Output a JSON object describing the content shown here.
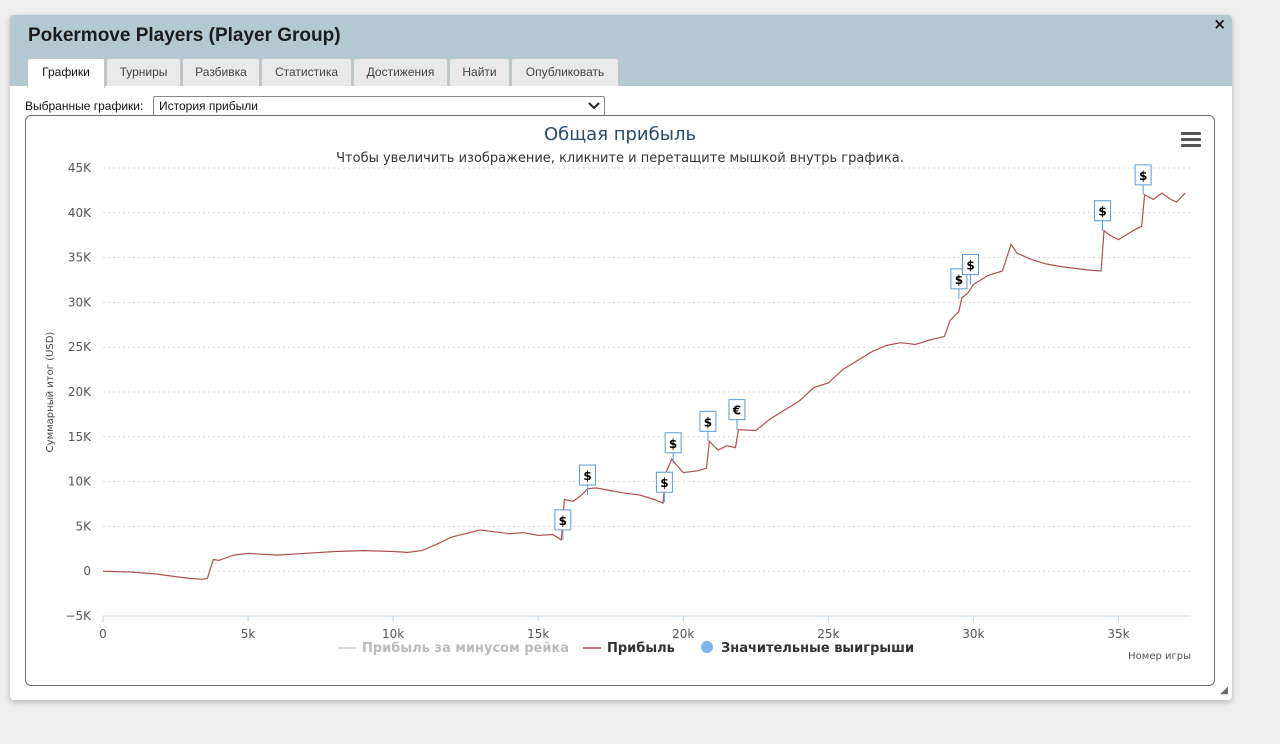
{
  "window": {
    "title": "Pokermove Players (Player Group)",
    "close_label": "×"
  },
  "tabs": [
    {
      "label": "Графики",
      "active": true
    },
    {
      "label": "Турниры"
    },
    {
      "label": "Разбивка"
    },
    {
      "label": "Статистика"
    },
    {
      "label": "Достижения"
    },
    {
      "label": "Найти"
    },
    {
      "label": "Опубликовать"
    }
  ],
  "selector": {
    "label": "Выбранные графики:",
    "value": "История прибыли"
  },
  "colors": {
    "profit": "#b05050",
    "rake": "#cccccc",
    "bigwin": "#7cb5ec",
    "flag_border": "#5b9bd5",
    "title": "#274b6d"
  },
  "chart_data": {
    "type": "line",
    "title": "Общая прибыль",
    "subtitle": "Чтобы увеличить изображение, кликните и перетащите мышкой внутрь графика.",
    "ylabel": "Суммарный итог (USD)",
    "xlabel": "Номер игры",
    "xlim": [
      0,
      37500
    ],
    "ylim": [
      -5000,
      45000
    ],
    "xticks": [
      0,
      5000,
      10000,
      15000,
      20000,
      25000,
      30000,
      35000
    ],
    "xtick_labels": [
      "0",
      "5k",
      "10k",
      "15k",
      "20k",
      "25k",
      "30k",
      "35k"
    ],
    "yticks": [
      -5000,
      0,
      5000,
      10000,
      15000,
      20000,
      25000,
      30000,
      35000,
      40000,
      45000
    ],
    "ytick_labels": [
      "−5K",
      "0",
      "5K",
      "10K",
      "15K",
      "20K",
      "25K",
      "30K",
      "35K",
      "40K",
      "45K"
    ],
    "grid": "horizontal dotted",
    "legend_position": "bottom-center",
    "legend": [
      "Прибыль за минусом рейка",
      "Прибыль",
      "Значительные выигрыши"
    ],
    "series": [
      {
        "name": "Прибыль",
        "x": [
          0,
          1000,
          1800,
          2500,
          3000,
          3400,
          3600,
          3800,
          4000,
          4500,
          5000,
          6000,
          7000,
          8000,
          9000,
          10000,
          10500,
          11000,
          11500,
          12000,
          12500,
          13000,
          13500,
          14000,
          14500,
          15000,
          15500,
          15800,
          15900,
          16200,
          16500,
          16700,
          17000,
          17500,
          18000,
          18500,
          19000,
          19300,
          19400,
          19600,
          19700,
          20000,
          20500,
          20800,
          20900,
          21200,
          21500,
          21800,
          21900,
          22500,
          23000,
          23500,
          24000,
          24500,
          25000,
          25500,
          26000,
          26500,
          27000,
          27500,
          28000,
          28500,
          29000,
          29200,
          29500,
          29600,
          29800,
          30000,
          30500,
          31000,
          31300,
          31500,
          32000,
          32500,
          33000,
          33500,
          34000,
          34400,
          34500,
          34700,
          35000,
          35500,
          35800,
          35900,
          36200,
          36500,
          36800,
          37000,
          37300
        ],
        "y": [
          0,
          -100,
          -300,
          -600,
          -800,
          -900,
          -800,
          1300,
          1200,
          1800,
          2000,
          1800,
          2000,
          2200,
          2300,
          2200,
          2100,
          2300,
          3000,
          3800,
          4200,
          4600,
          4400,
          4200,
          4300,
          4000,
          4100,
          3500,
          8000,
          7800,
          8500,
          9200,
          9300,
          9000,
          8700,
          8500,
          8000,
          7600,
          11000,
          12500,
          12100,
          11000,
          11200,
          11500,
          14500,
          13500,
          14000,
          13800,
          15800,
          15700,
          17000,
          18000,
          19000,
          20500,
          21000,
          22500,
          23500,
          24500,
          25200,
          25500,
          25300,
          25800,
          26200,
          28000,
          29000,
          30500,
          31000,
          32000,
          33000,
          33500,
          36500,
          35500,
          34800,
          34300,
          34000,
          33800,
          33600,
          33500,
          38000,
          37500,
          37000,
          38000,
          38500,
          42000,
          41500,
          42200,
          41500,
          41200,
          42200
        ]
      }
    ],
    "big_wins": [
      {
        "x": 15850,
        "y": 3500,
        "symbol": "$"
      },
      {
        "x": 16700,
        "y": 8500,
        "symbol": "$"
      },
      {
        "x": 19350,
        "y": 7700,
        "symbol": "$"
      },
      {
        "x": 19650,
        "y": 12100,
        "symbol": "$"
      },
      {
        "x": 20850,
        "y": 14500,
        "symbol": "$"
      },
      {
        "x": 21850,
        "y": 15800,
        "symbol": "€"
      },
      {
        "x": 29500,
        "y": 30400,
        "symbol": "$"
      },
      {
        "x": 29900,
        "y": 32000,
        "symbol": "$"
      },
      {
        "x": 34450,
        "y": 38000,
        "symbol": "$"
      },
      {
        "x": 35850,
        "y": 42000,
        "symbol": "$"
      }
    ]
  }
}
